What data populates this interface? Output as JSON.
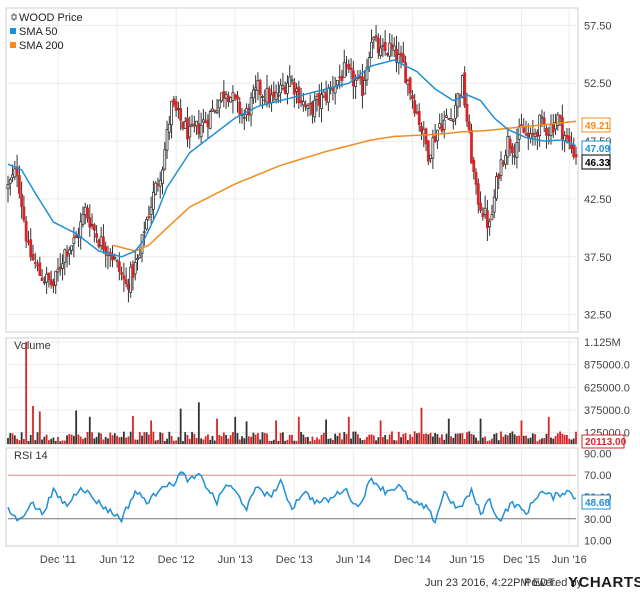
{
  "chart_data": {
    "type": "line",
    "legend": {
      "placement": "top-left",
      "entries": [
        {
          "label": "WOOD Price",
          "color": "#000000",
          "icon": "candlestick-icon"
        },
        {
          "label": "SMA 50",
          "color": "#1f8fd6"
        },
        {
          "label": "SMA 200",
          "color": "#f28c1e"
        }
      ]
    },
    "x_tick_labels": [
      "Dec '11",
      "Jun '12",
      "Dec '12",
      "Jun '13",
      "Dec '13",
      "Jun '14",
      "Dec '14",
      "Jun '15",
      "Dec '15",
      "Jun '16"
    ],
    "price_panel": {
      "yticks": [
        "57.50",
        "52.50",
        "47.50",
        "42.50",
        "37.50",
        "32.50"
      ],
      "ylim": [
        31.0,
        59.0
      ],
      "last_labels": [
        {
          "text": "49.21",
          "color": "#f28c1e"
        },
        {
          "text": "47.09",
          "color": "#1f8fd6"
        },
        {
          "text": "46.33",
          "color": "#000000"
        }
      ],
      "price_anchors": {
        "t": [
          0,
          4,
          9,
          14,
          20,
          25,
          30,
          34,
          40,
          45,
          52,
          58,
          60,
          68,
          72,
          80,
          88,
          96,
          104,
          110,
          117,
          124,
          132,
          140,
          148,
          156,
          160,
          164,
          168,
          174,
          180,
          185,
          190,
          195,
          200,
          206,
          212,
          216,
          220,
          223,
          226,
          230,
          234,
          238,
          242,
          246,
          250
        ],
        "v": [
          43.5,
          45.0,
          38.0,
          36.0,
          35.0,
          38.0,
          39.0,
          41.5,
          39.0,
          38.0,
          35.0,
          37.5,
          40.0,
          45.5,
          50.5,
          48.0,
          49.5,
          52.0,
          49.5,
          52.0,
          51.0,
          53.0,
          50.0,
          51.5,
          53.5,
          52.0,
          56.5,
          55.0,
          55.5,
          54.0,
          50.0,
          46.5,
          49.0,
          49.5,
          52.5,
          43.0,
          40.0,
          45.0,
          47.5,
          47.0,
          48.5,
          47.5,
          49.0,
          48.5,
          49.5,
          47.5,
          46.33
        ]
      },
      "sma50_anchors": {
        "t": [
          0,
          6,
          12,
          20,
          30,
          40,
          50,
          56,
          60,
          66,
          70,
          80,
          90,
          100,
          110,
          120,
          130,
          140,
          150,
          160,
          170,
          180,
          188,
          196,
          202,
          208,
          214,
          220,
          228,
          236,
          244,
          250
        ],
        "v": [
          45.5,
          45.0,
          43.0,
          40.5,
          39.5,
          38.0,
          37.5,
          38.0,
          39.0,
          41.5,
          43.5,
          46.5,
          48.0,
          49.5,
          50.5,
          51.0,
          51.5,
          52.0,
          52.5,
          54.0,
          54.5,
          53.5,
          52.0,
          51.0,
          51.5,
          51.0,
          49.5,
          48.5,
          47.8,
          47.5,
          47.6,
          47.09
        ]
      },
      "sma200_anchors": {
        "t": [
          46,
          56,
          62,
          70,
          80,
          90,
          100,
          110,
          120,
          130,
          140,
          150,
          160,
          170,
          180,
          190,
          200,
          210,
          220,
          230,
          240,
          250
        ],
        "v": [
          38.5,
          38.0,
          38.5,
          40.0,
          41.8,
          42.8,
          43.8,
          44.6,
          45.4,
          46.0,
          46.6,
          47.1,
          47.6,
          47.9,
          48.0,
          48.1,
          48.3,
          48.4,
          48.6,
          48.8,
          49.0,
          49.21
        ]
      }
    },
    "volume_panel": {
      "title": "Volume",
      "yticks": [
        "1.125M",
        "875000.0",
        "625000.0",
        "375000.0",
        "125000.0"
      ],
      "ylim": [
        0,
        1125000
      ],
      "last_label": {
        "text": "20113.00",
        "color": "#d62728"
      },
      "spikes": {
        "t": [
          8,
          11,
          14,
          30,
          36,
          55,
          63,
          76,
          84,
          92,
          100,
          105,
          118,
          128,
          140,
          150,
          164,
          182,
          194,
          208,
          226,
          238
        ],
        "v": [
          1150000,
          420000,
          360000,
          370000,
          300000,
          310000,
          260000,
          390000,
          460000,
          280000,
          300000,
          250000,
          260000,
          300000,
          270000,
          300000,
          260000,
          400000,
          280000,
          280000,
          260000,
          300000
        ]
      }
    },
    "rsi_panel": {
      "title": "RSI 14",
      "yticks": [
        "90.00",
        "70.00",
        "50.00",
        "30.00",
        "10.00"
      ],
      "ylim": [
        5,
        95
      ],
      "guide_levels": [
        70,
        30
      ],
      "last_label": {
        "text": "48.68",
        "color": "#1f8fd6"
      },
      "rsi_anchors": {
        "t": [
          0,
          5,
          10,
          15,
          20,
          26,
          32,
          38,
          44,
          50,
          56,
          62,
          68,
          72,
          76,
          80,
          84,
          88,
          92,
          96,
          100,
          105,
          110,
          115,
          120,
          125,
          130,
          136,
          142,
          148,
          154,
          160,
          166,
          172,
          178,
          184,
          188,
          192,
          198,
          204,
          208,
          212,
          216,
          222,
          228,
          234,
          240,
          246,
          250
        ],
        "v": [
          38,
          28,
          45,
          35,
          55,
          42,
          60,
          48,
          38,
          30,
          55,
          45,
          62,
          60,
          72,
          65,
          70,
          58,
          45,
          62,
          55,
          40,
          60,
          50,
          63,
          40,
          55,
          45,
          48,
          58,
          40,
          67,
          55,
          60,
          45,
          40,
          28,
          55,
          38,
          55,
          35,
          48,
          28,
          45,
          35,
          55,
          50,
          56,
          48.68
        ]
      }
    }
  },
  "footer": {
    "timestamp": "Jun 23 2016, 4:22PM EDT.",
    "powered_by": "Powered by",
    "brand": "YCHARTS"
  }
}
